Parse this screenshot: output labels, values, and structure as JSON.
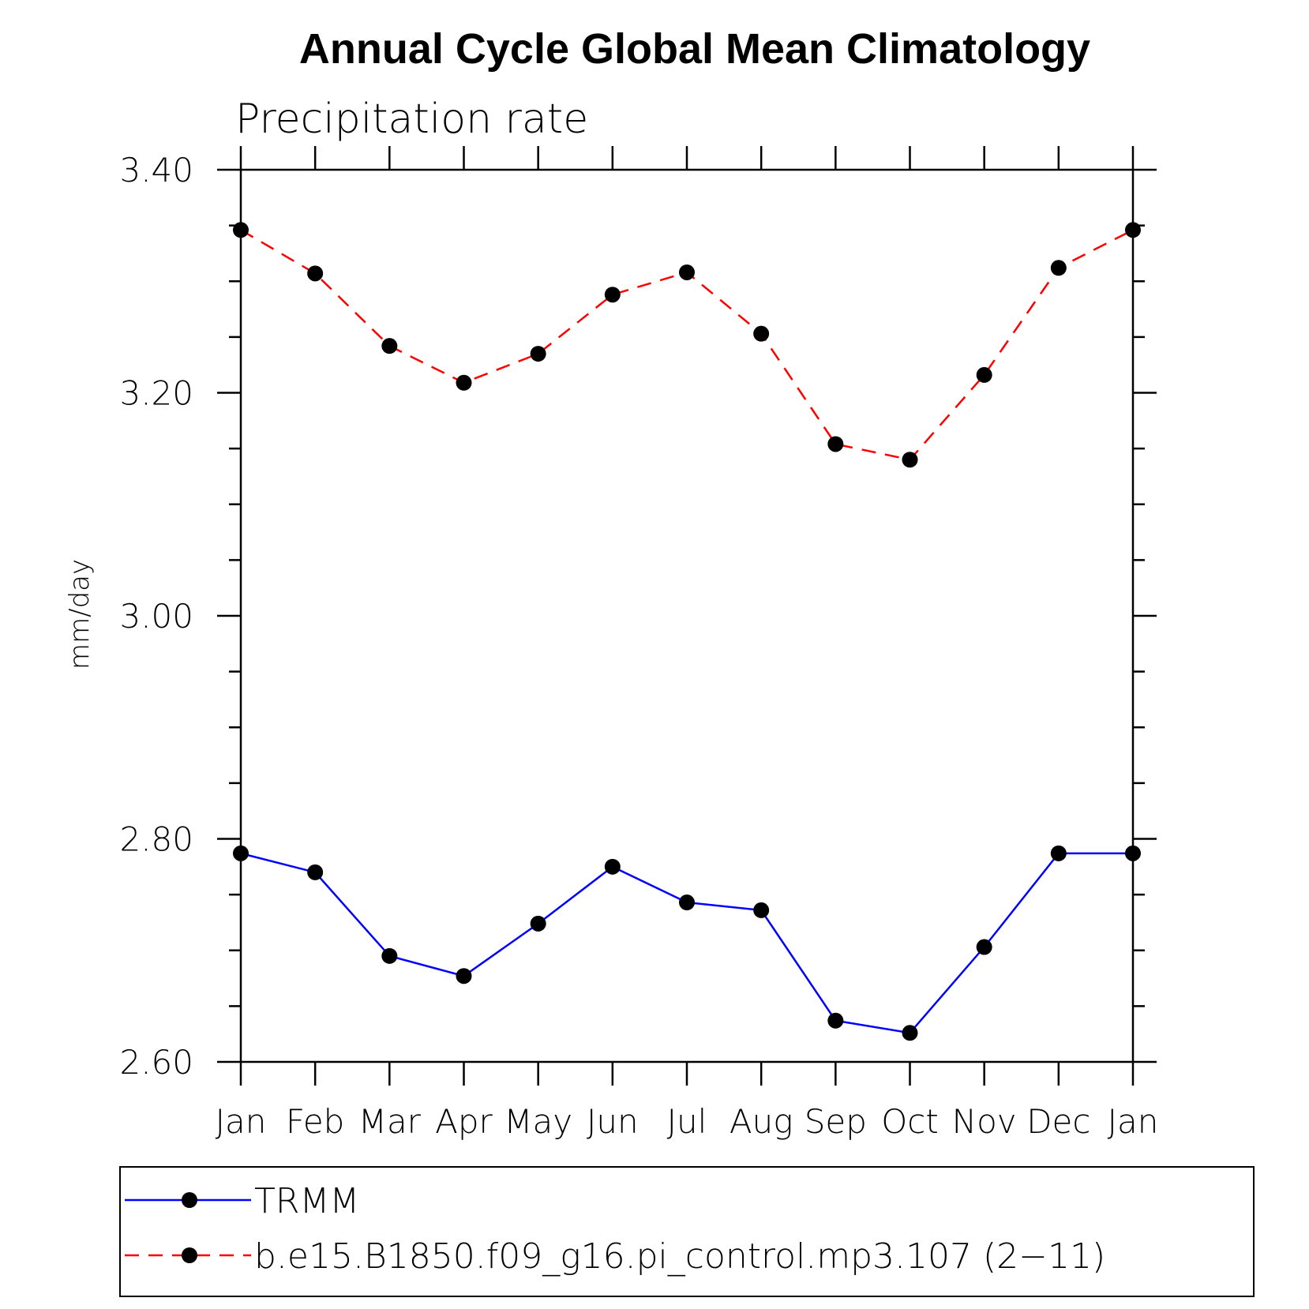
{
  "chart_data": {
    "type": "line",
    "title": "Annual Cycle Global Mean Climatology",
    "subtitle": "Precipitation rate",
    "xlabel": "",
    "ylabel": "mm/day",
    "categories": [
      "Jan",
      "Feb",
      "Mar",
      "Apr",
      "May",
      "Jun",
      "Jul",
      "Aug",
      "Sep",
      "Oct",
      "Nov",
      "Dec",
      "Jan"
    ],
    "ylim": [
      2.6,
      3.4
    ],
    "yticks": [
      "2.60",
      "2.80",
      "3.00",
      "3.20",
      "3.40"
    ],
    "legend_position": "bottom",
    "series": [
      {
        "name": "TRMM",
        "color": "#0000ff",
        "line_style": "solid",
        "marker": "filled-circle",
        "values": [
          2.787,
          2.77,
          2.695,
          2.677,
          2.724,
          2.775,
          2.743,
          2.736,
          2.637,
          2.626,
          2.703,
          2.787,
          2.787
        ]
      },
      {
        "name": "b.e15.B1850.f09_g16.pi_control.mp3.107 (2−11)",
        "color": "#ff0000",
        "line_style": "dashed",
        "marker": "filled-circle",
        "values": [
          3.346,
          3.307,
          3.242,
          3.209,
          3.235,
          3.288,
          3.308,
          3.253,
          3.154,
          3.14,
          3.216,
          3.312,
          3.346
        ]
      }
    ]
  }
}
